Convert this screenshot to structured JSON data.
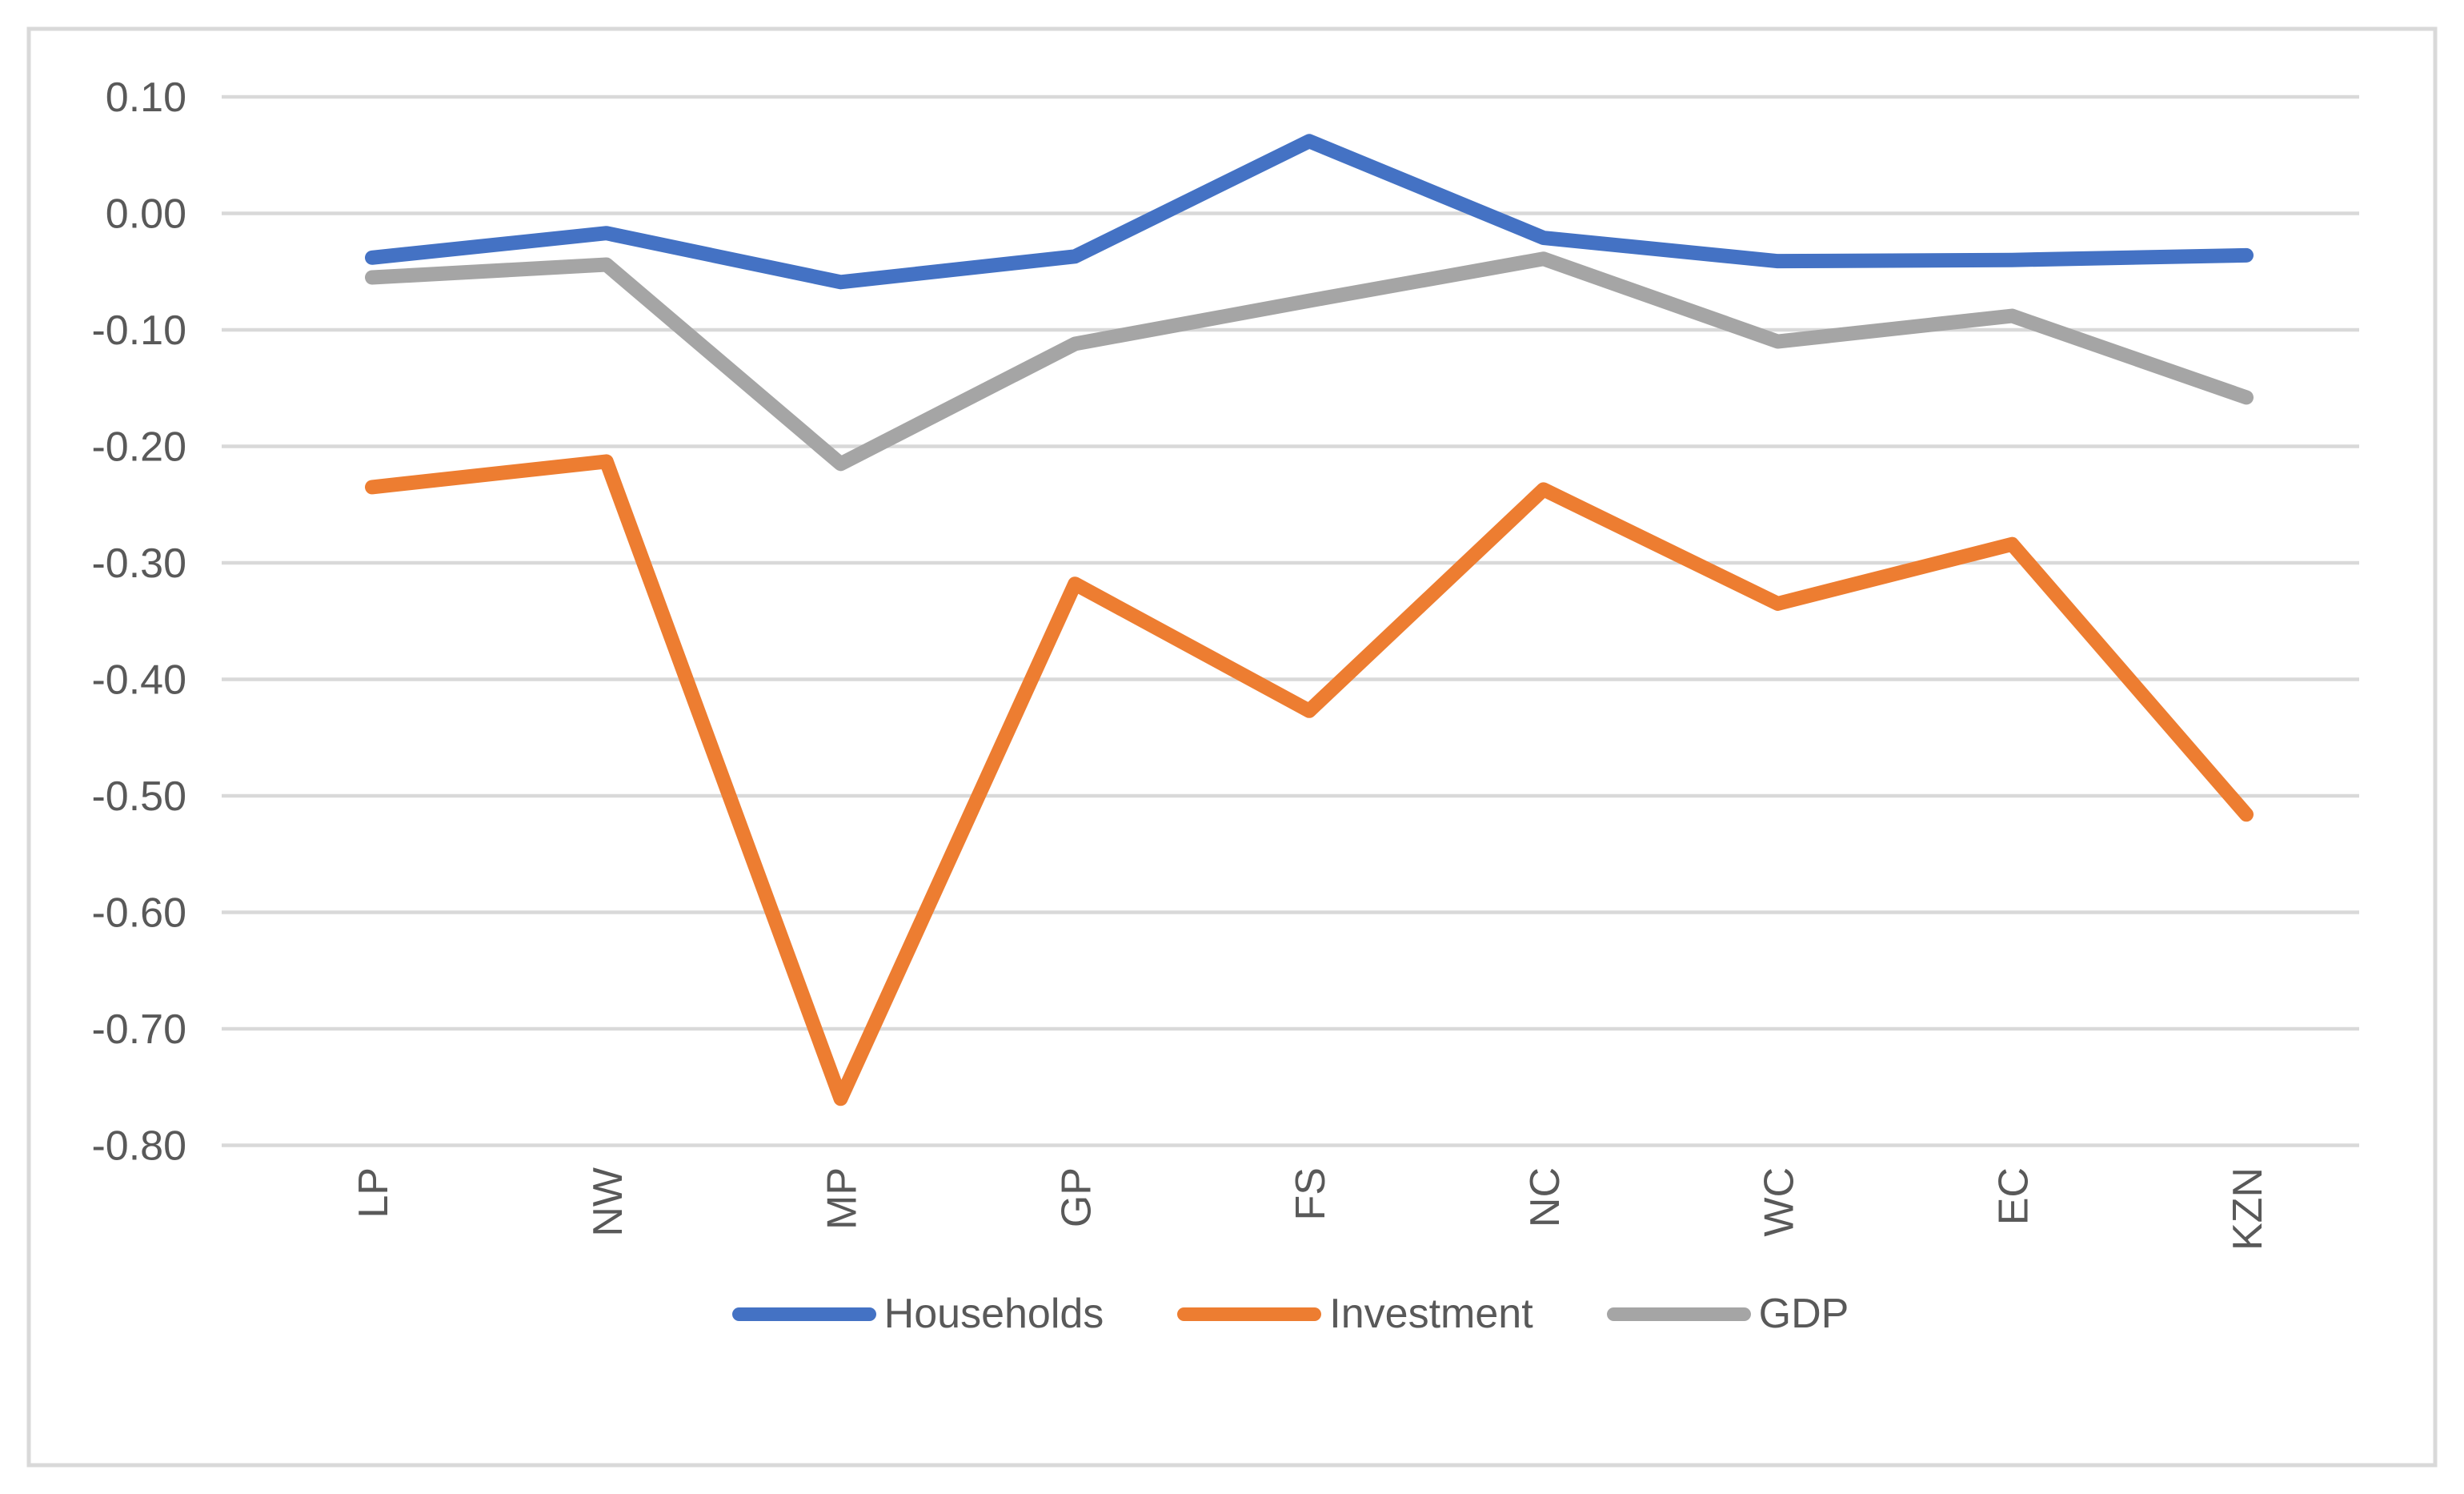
{
  "chart_data": {
    "type": "line",
    "categories": [
      "LP",
      "NW",
      "MP",
      "GP",
      "FS",
      "NC",
      "WC",
      "EC",
      "KZN"
    ],
    "series": [
      {
        "name": "Households",
        "color": "#4472C4",
        "values": [
          -0.038,
          -0.017,
          -0.059,
          -0.037,
          0.062,
          -0.021,
          -0.041,
          -0.04,
          -0.036
        ]
      },
      {
        "name": "Investment",
        "color": "#ED7D31",
        "values": [
          -0.235,
          -0.213,
          -0.76,
          -0.318,
          -0.427,
          -0.237,
          -0.335,
          -0.284,
          -0.516
        ]
      },
      {
        "name": "GDP",
        "color": "#A5A5A5",
        "values": [
          -0.055,
          -0.044,
          -0.215,
          -0.112,
          -0.075,
          -0.039,
          -0.11,
          -0.088,
          -0.158
        ]
      }
    ],
    "y_ticks": [
      "0.10",
      "0.00",
      "-0.10",
      "-0.20",
      "-0.30",
      "-0.40",
      "-0.50",
      "-0.60",
      "-0.70",
      "-0.80"
    ],
    "y_tick_values": [
      0.1,
      0.0,
      -0.1,
      -0.2,
      -0.3,
      -0.4,
      -0.5,
      -0.6,
      -0.7,
      -0.8
    ],
    "ylim": [
      -0.8,
      0.1
    ],
    "xlabel": "",
    "ylabel": "",
    "title": "",
    "grid": true,
    "legend_position": "bottom",
    "legend_labels": [
      "Households",
      "Investment",
      "GDP"
    ],
    "colors": {
      "gridline": "#D9D9D9",
      "chart_border": "#D9D9D9",
      "text": "#595959",
      "background": "#FFFFFF"
    }
  }
}
